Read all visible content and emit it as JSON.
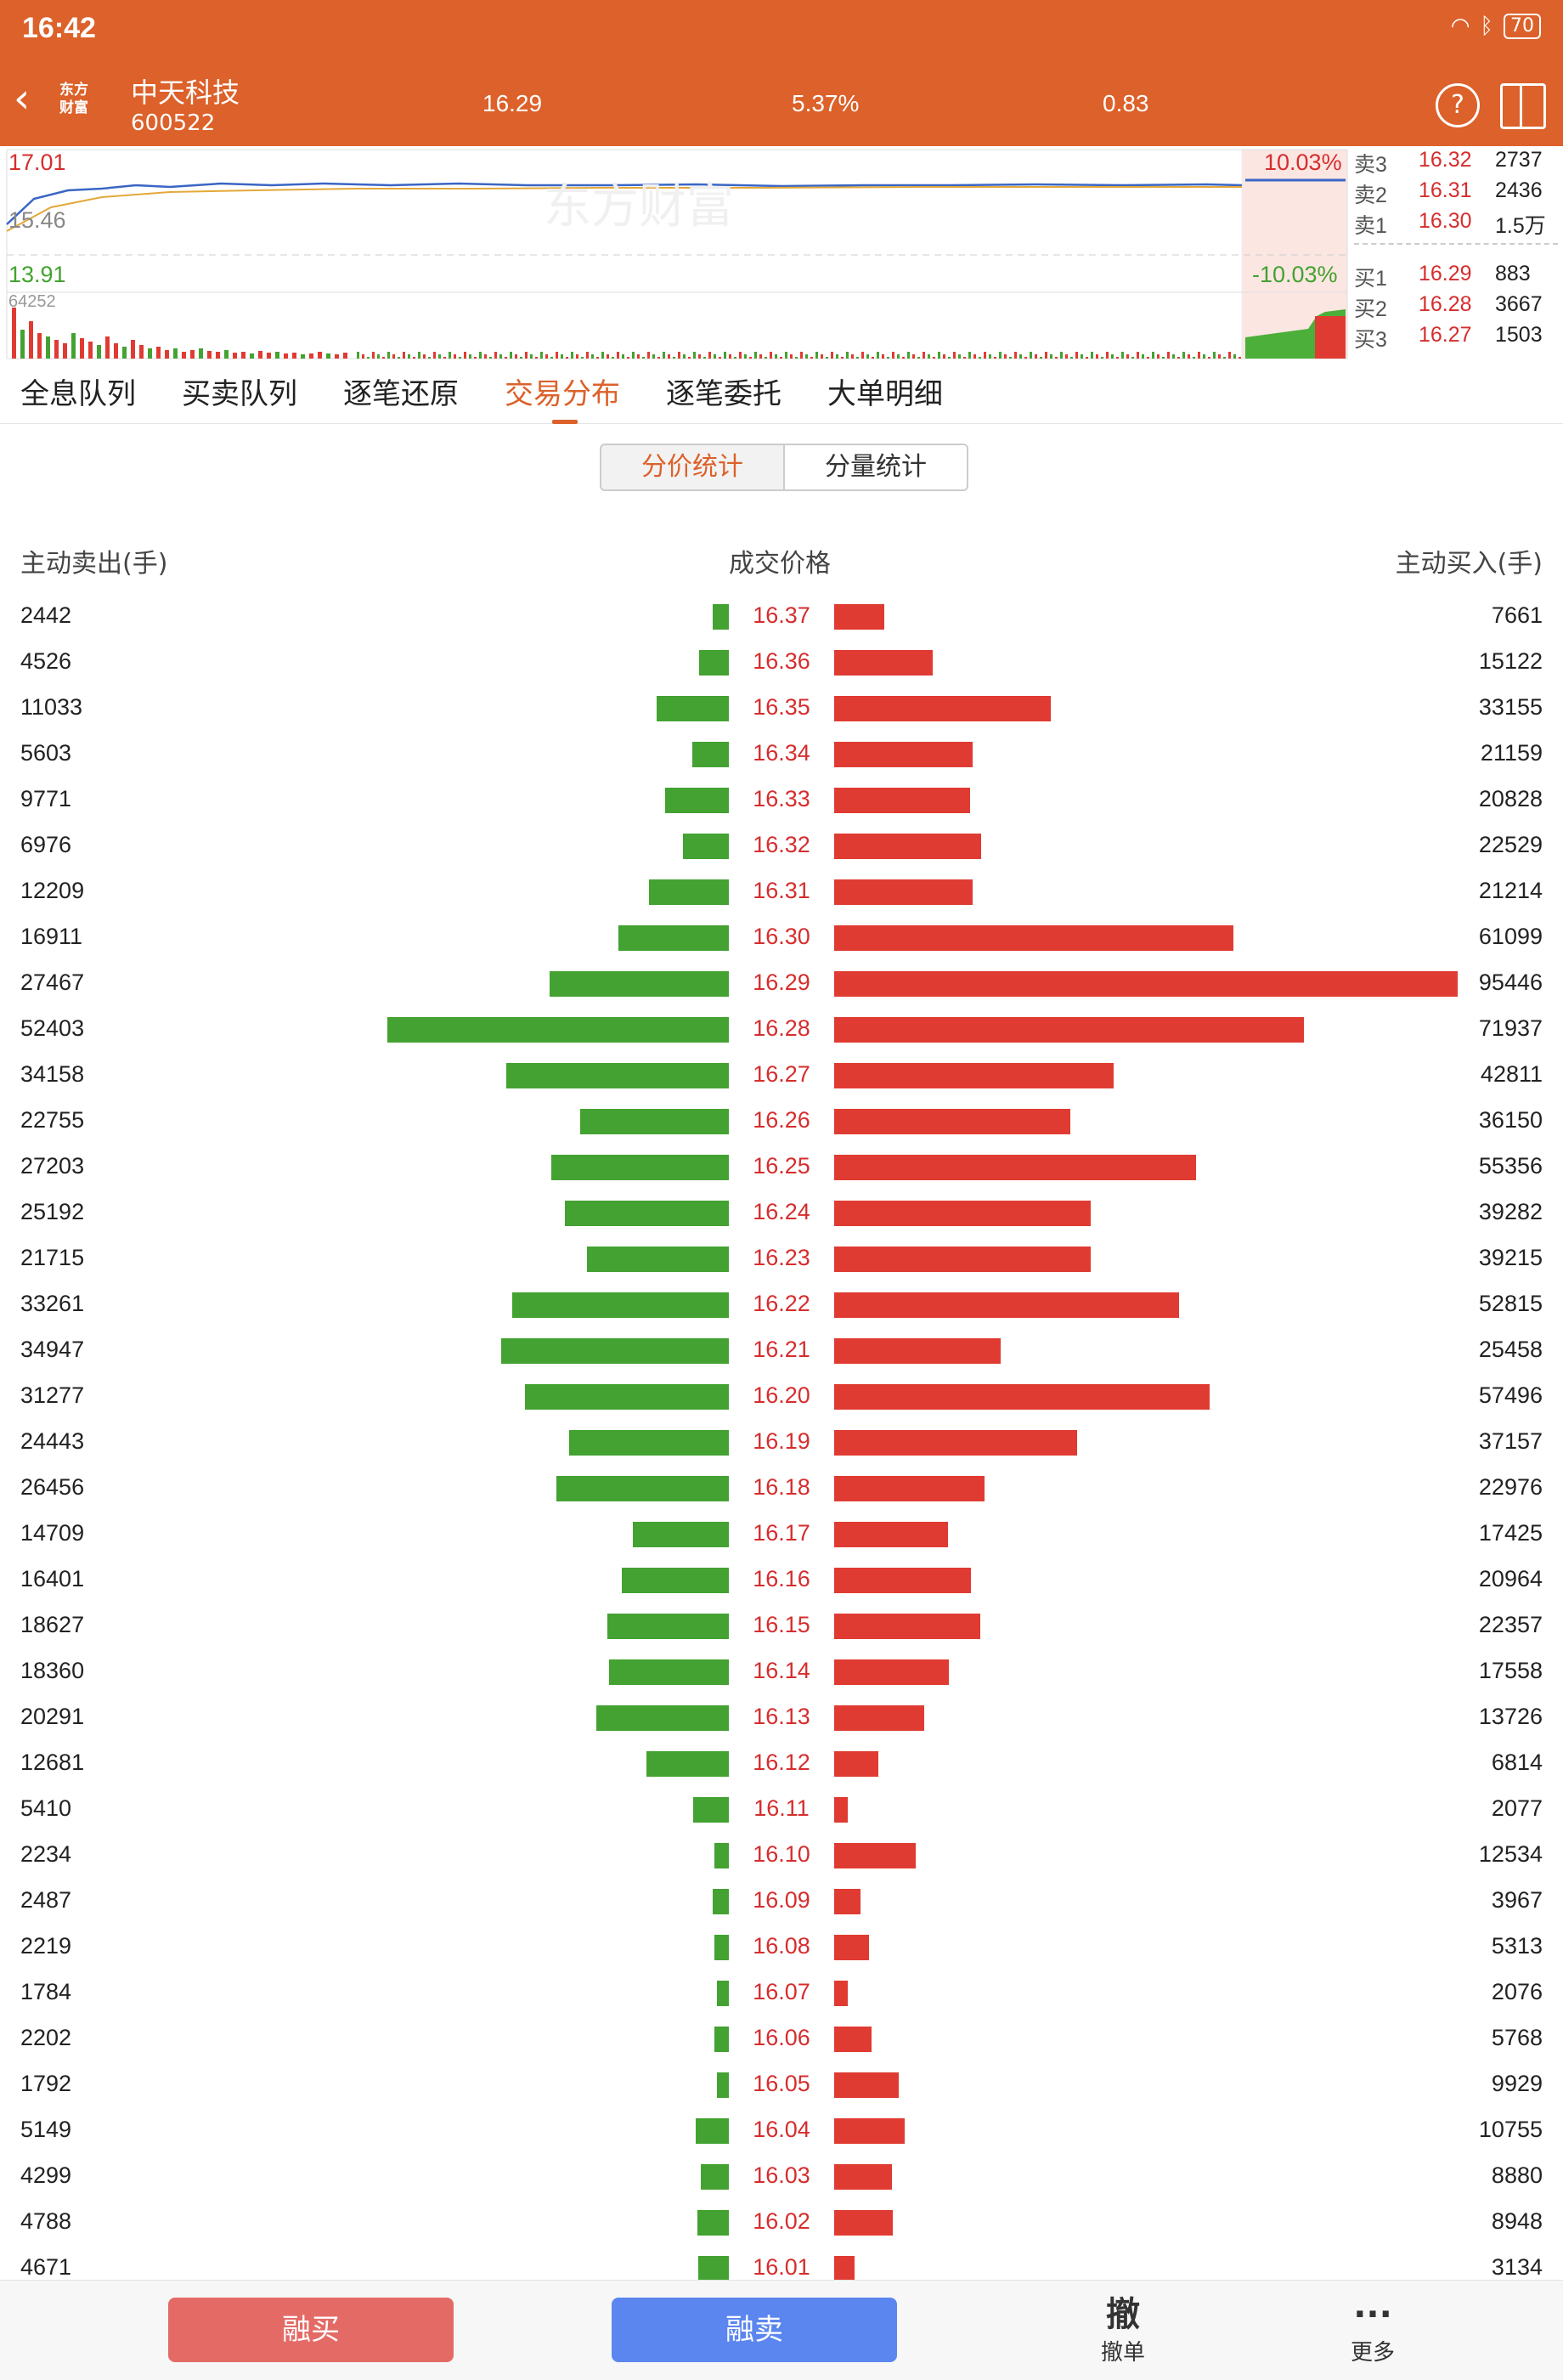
{
  "status": {
    "time": "16:42",
    "battery": "70"
  },
  "header": {
    "name": "中天科技",
    "code": "600522",
    "price": "16.29",
    "change_pct": "5.37%",
    "change": "0.83",
    "logo_line1": "东方",
    "logo_line2": "财富"
  },
  "chart": {
    "high_price": "17.01",
    "high_pct": "10.03%",
    "low_price": "13.91",
    "low_pct": "-10.03%",
    "prev_close": "15.46",
    "volume": "64252",
    "watermark": "东方财富"
  },
  "orderbook": {
    "sells": [
      {
        "label": "卖3",
        "price": "16.32",
        "qty": "2737"
      },
      {
        "label": "卖2",
        "price": "16.31",
        "qty": "2436"
      },
      {
        "label": "卖1",
        "price": "16.30",
        "qty": "1.5万"
      }
    ],
    "buys": [
      {
        "label": "买1",
        "price": "16.29",
        "qty": "883"
      },
      {
        "label": "买2",
        "price": "16.28",
        "qty": "3667"
      },
      {
        "label": "买3",
        "price": "16.27",
        "qty": "1503"
      }
    ]
  },
  "tabs": [
    "全息队列",
    "买卖队列",
    "逐笔还原",
    "交易分布",
    "逐笔委托",
    "大单明细"
  ],
  "active_tab": 3,
  "segments": {
    "price_stat": "分价统计",
    "volume_stat": "分量统计"
  },
  "columns": {
    "sell": "主动卖出(手)",
    "price": "成交价格",
    "buy": "主动买入(手)"
  },
  "colors": {
    "brand": "#dc612a",
    "sell_bar": "#43a231",
    "buy_bar": "#e03b32",
    "price_text": "#d62d2d"
  },
  "rows": [
    {
      "sell": 2442,
      "price": "16.37",
      "buy": 7661
    },
    {
      "sell": 4526,
      "price": "16.36",
      "buy": 15122
    },
    {
      "sell": 11033,
      "price": "16.35",
      "buy": 33155
    },
    {
      "sell": 5603,
      "price": "16.34",
      "buy": 21159
    },
    {
      "sell": 9771,
      "price": "16.33",
      "buy": 20828
    },
    {
      "sell": 6976,
      "price": "16.32",
      "buy": 22529
    },
    {
      "sell": 12209,
      "price": "16.31",
      "buy": 21214
    },
    {
      "sell": 16911,
      "price": "16.30",
      "buy": 61099
    },
    {
      "sell": 27467,
      "price": "16.29",
      "buy": 95446
    },
    {
      "sell": 52403,
      "price": "16.28",
      "buy": 71937
    },
    {
      "sell": 34158,
      "price": "16.27",
      "buy": 42811
    },
    {
      "sell": 22755,
      "price": "16.26",
      "buy": 36150
    },
    {
      "sell": 27203,
      "price": "16.25",
      "buy": 55356
    },
    {
      "sell": 25192,
      "price": "16.24",
      "buy": 39282
    },
    {
      "sell": 21715,
      "price": "16.23",
      "buy": 39215
    },
    {
      "sell": 33261,
      "price": "16.22",
      "buy": 52815
    },
    {
      "sell": 34947,
      "price": "16.21",
      "buy": 25458
    },
    {
      "sell": 31277,
      "price": "16.20",
      "buy": 57496
    },
    {
      "sell": 24443,
      "price": "16.19",
      "buy": 37157
    },
    {
      "sell": 26456,
      "price": "16.18",
      "buy": 22976
    },
    {
      "sell": 14709,
      "price": "16.17",
      "buy": 17425
    },
    {
      "sell": 16401,
      "price": "16.16",
      "buy": 20964
    },
    {
      "sell": 18627,
      "price": "16.15",
      "buy": 22357
    },
    {
      "sell": 18360,
      "price": "16.14",
      "buy": 17558
    },
    {
      "sell": 20291,
      "price": "16.13",
      "buy": 13726
    },
    {
      "sell": 12681,
      "price": "16.12",
      "buy": 6814
    },
    {
      "sell": 5410,
      "price": "16.11",
      "buy": 2077
    },
    {
      "sell": 2234,
      "price": "16.10",
      "buy": 12534
    },
    {
      "sell": 2487,
      "price": "16.09",
      "buy": 3967
    },
    {
      "sell": 2219,
      "price": "16.08",
      "buy": 5313
    },
    {
      "sell": 1784,
      "price": "16.07",
      "buy": 2076
    },
    {
      "sell": 2202,
      "price": "16.06",
      "buy": 5768
    },
    {
      "sell": 1792,
      "price": "16.05",
      "buy": 9929
    },
    {
      "sell": 5149,
      "price": "16.04",
      "buy": 10755
    },
    {
      "sell": 4299,
      "price": "16.03",
      "buy": 8880
    },
    {
      "sell": 4788,
      "price": "16.02",
      "buy": 8948
    },
    {
      "sell": 4671,
      "price": "16.01",
      "buy": 3134
    }
  ],
  "bottom": {
    "margin_buy": "融买",
    "margin_sell": "融卖",
    "cancel_icon": "撤",
    "cancel": "撤单",
    "more": "更多"
  }
}
